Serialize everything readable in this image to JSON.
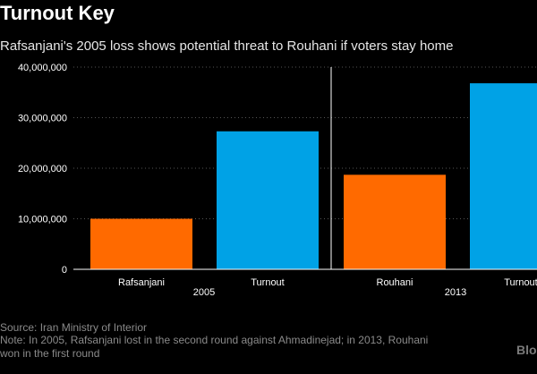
{
  "title": "Turnout Key",
  "subtitle": "Rafsanjani's 2005 loss shows potential threat to Rouhani if voters stay home",
  "colors": {
    "background": "#000000",
    "candidate": "#ff6a00",
    "turnout": "#00a2e6",
    "axis": "#ffffff",
    "grid": "#555555"
  },
  "chart_data": {
    "type": "bar",
    "ylim": [
      0,
      40000000
    ],
    "ytick_values": [
      0,
      10000000,
      20000000,
      30000000,
      40000000
    ],
    "ytick_labels": [
      "0",
      "10,000,000",
      "20,000,000",
      "30,000,000",
      "40,000,000"
    ],
    "grid": true,
    "groups": [
      {
        "year": "2005",
        "bars": [
          {
            "label": "Rafsanjani",
            "value": 10000000,
            "color_key": "candidate"
          },
          {
            "label": "Turnout",
            "value": 27300000,
            "color_key": "turnout"
          }
        ]
      },
      {
        "year": "2013",
        "bars": [
          {
            "label": "Rouhani",
            "value": 18700000,
            "color_key": "candidate"
          },
          {
            "label": "Turnout",
            "value": 36800000,
            "color_key": "turnout"
          }
        ]
      }
    ]
  },
  "footer": {
    "source": "Source: Iran Ministry of Interior",
    "note_line1": "Note: In 2005, Rafsanjani lost in the second round against Ahmadinejad; in 2013, Rouhani",
    "note_line2": "won in the first round"
  },
  "logo_text": "Blo"
}
